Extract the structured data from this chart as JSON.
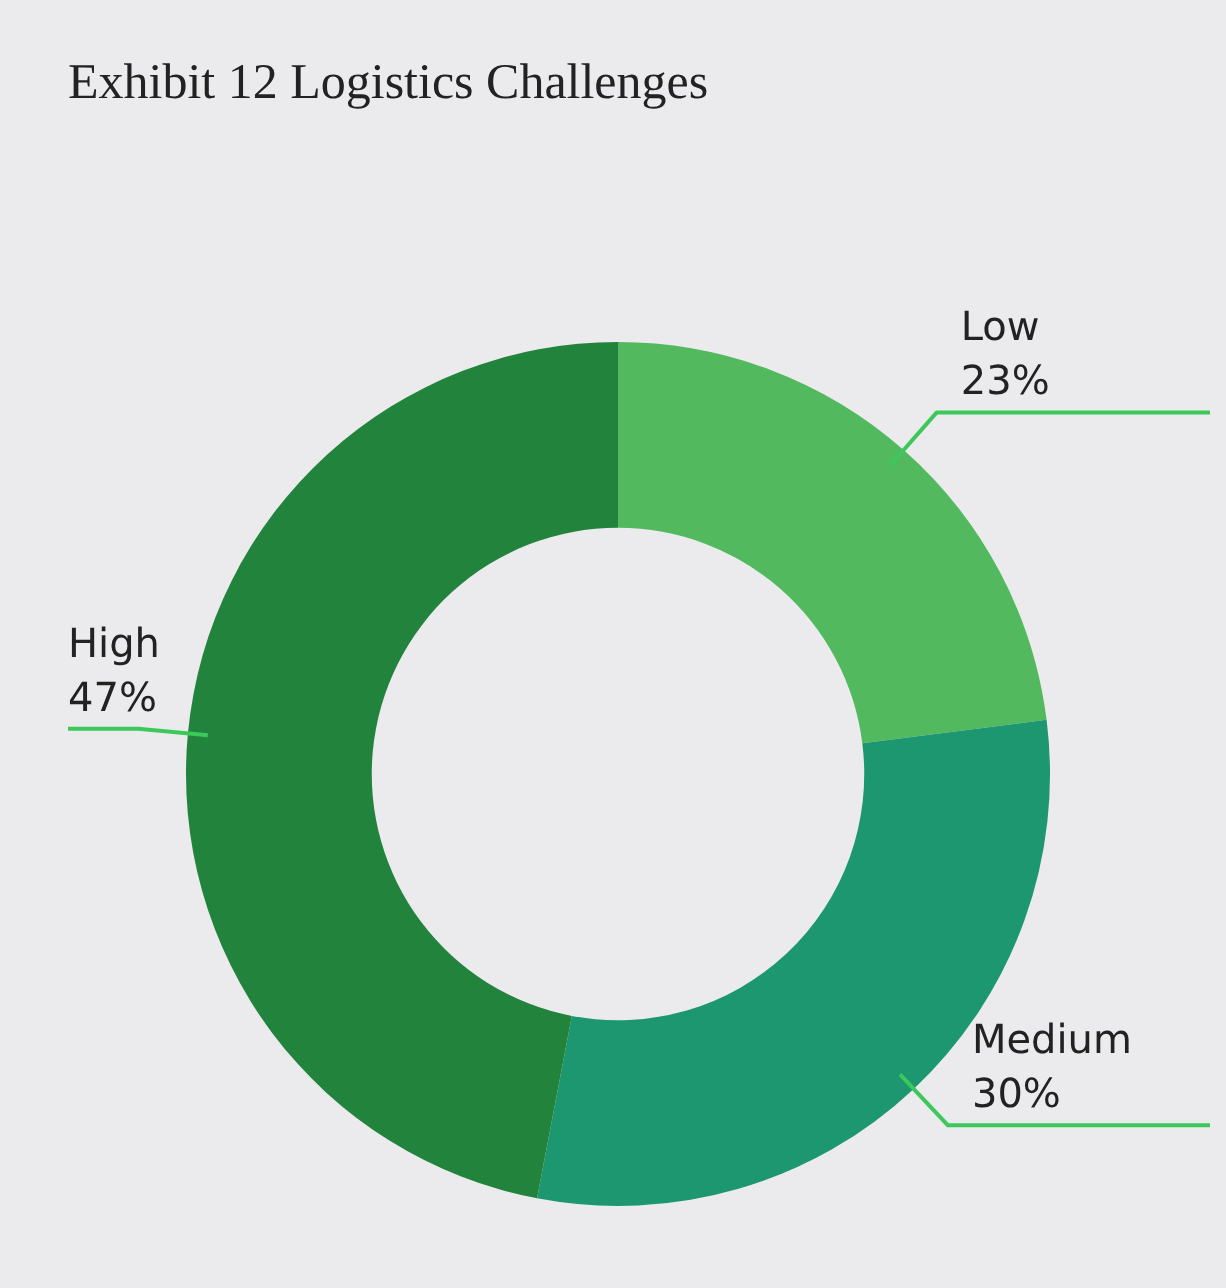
{
  "chart_data": {
    "type": "donut",
    "title": "Exhibit 12  Logistics Challenges",
    "categories": [
      "Low",
      "Medium",
      "High"
    ],
    "values": [
      23,
      30,
      47
    ],
    "value_labels": [
      "23%",
      "30%",
      "47%"
    ],
    "colors": [
      "#52b95f",
      "#1d9770",
      "#22843c"
    ],
    "legend": false
  }
}
